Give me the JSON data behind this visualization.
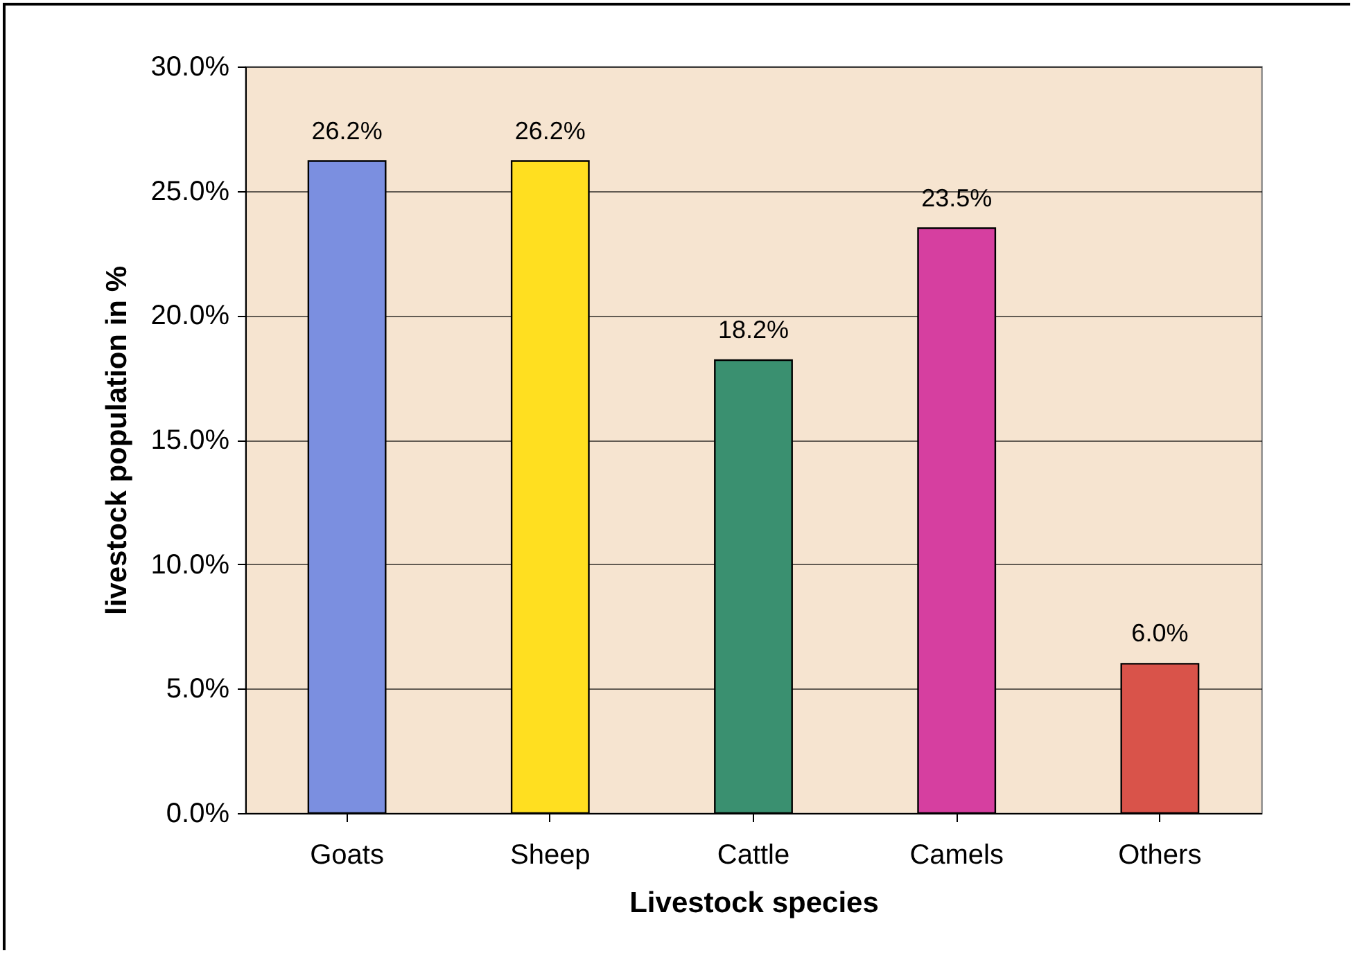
{
  "chart_data": {
    "type": "bar",
    "xlabel": "Livestock species",
    "ylabel": "livestock population in %",
    "categories": [
      "Goats",
      "Sheep",
      "Cattle",
      "Camels",
      "Others"
    ],
    "values": [
      26.2,
      26.2,
      18.2,
      23.5,
      6.0
    ],
    "value_labels": [
      "26.2%",
      "26.2%",
      "18.2%",
      "23.5%",
      "6.0%"
    ],
    "colors": [
      "#7b8fe0",
      "#ffdf20",
      "#3a9070",
      "#d63fa0",
      "#d9534a"
    ],
    "ylim": [
      0,
      30
    ],
    "yticks": [
      {
        "value": 0,
        "label": "0.0%"
      },
      {
        "value": 5,
        "label": "5.0%"
      },
      {
        "value": 10,
        "label": "10.0%"
      },
      {
        "value": 15,
        "label": "15.0%"
      },
      {
        "value": 20,
        "label": "20.0%"
      },
      {
        "value": 25,
        "label": "25.0%"
      },
      {
        "value": 30,
        "label": "30.0%"
      }
    ],
    "grid": "y",
    "legend": false
  }
}
